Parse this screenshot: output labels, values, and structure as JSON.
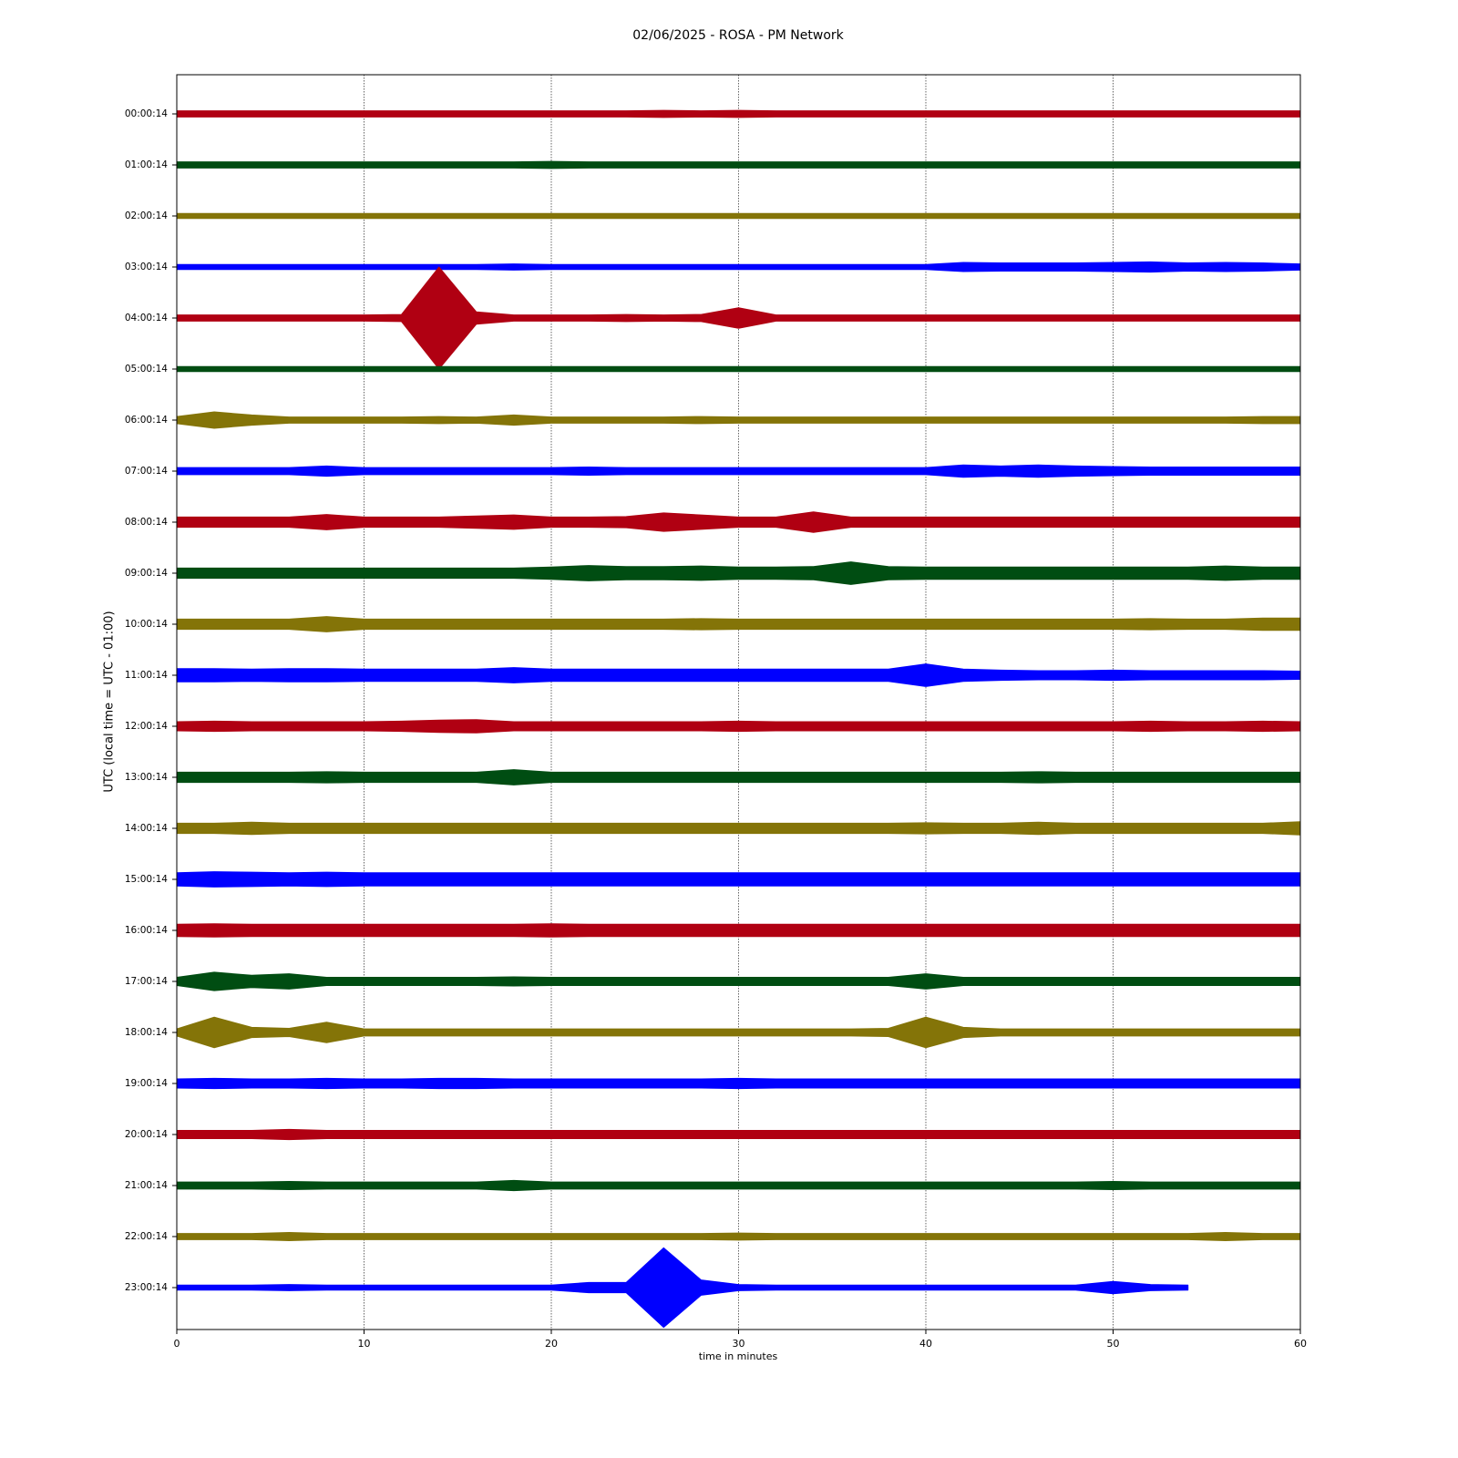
{
  "chart_data": {
    "type": "helicorder",
    "title": "02/06/2025 - ROSA - PM Network",
    "x_label": "time in minutes",
    "y_label": "UTC (local time = UTC - 01:00)",
    "xlim": [
      0,
      60
    ],
    "xticks": [
      0,
      10,
      20,
      30,
      40,
      50,
      60
    ],
    "grid": true,
    "categories": [
      "00:00:14",
      "01:00:14",
      "02:00:14",
      "03:00:14",
      "04:00:14",
      "05:00:14",
      "06:00:14",
      "07:00:14",
      "08:00:14",
      "09:00:14",
      "10:00:14",
      "11:00:14",
      "12:00:14",
      "13:00:14",
      "14:00:14",
      "15:00:14",
      "16:00:14",
      "17:00:14",
      "18:00:14",
      "19:00:14",
      "20:00:14",
      "21:00:14",
      "22:00:14",
      "23:00:14"
    ],
    "x": [
      0,
      2,
      4,
      6,
      8,
      10,
      12,
      14,
      16,
      18,
      20,
      22,
      24,
      26,
      28,
      30,
      32,
      34,
      36,
      38,
      40,
      42,
      44,
      46,
      48,
      50,
      52,
      54,
      56,
      58,
      60
    ],
    "series": [
      {
        "color": "#b00012",
        "values": [
          0.06,
          0.06,
          0.06,
          0.06,
          0.06,
          0.06,
          0.06,
          0.06,
          0.06,
          0.06,
          0.06,
          0.06,
          0.06,
          0.07,
          0.06,
          0.07,
          0.06,
          0.06,
          0.06,
          0.06,
          0.06,
          0.06,
          0.06,
          0.06,
          0.06,
          0.06,
          0.06,
          0.06,
          0.06,
          0.06,
          0.06
        ]
      },
      {
        "color": "#004d12",
        "values": [
          0.06,
          0.06,
          0.06,
          0.06,
          0.06,
          0.06,
          0.06,
          0.06,
          0.06,
          0.06,
          0.07,
          0.06,
          0.06,
          0.06,
          0.06,
          0.06,
          0.06,
          0.06,
          0.06,
          0.06,
          0.06,
          0.06,
          0.06,
          0.06,
          0.06,
          0.06,
          0.06,
          0.06,
          0.06,
          0.06,
          0.06
        ]
      },
      {
        "color": "#847408",
        "values": [
          0.05,
          0.05,
          0.05,
          0.05,
          0.05,
          0.05,
          0.05,
          0.05,
          0.05,
          0.05,
          0.05,
          0.05,
          0.05,
          0.05,
          0.05,
          0.05,
          0.05,
          0.05,
          0.05,
          0.05,
          0.05,
          0.05,
          0.05,
          0.05,
          0.05,
          0.05,
          0.05,
          0.05,
          0.05,
          0.05,
          0.05
        ]
      },
      {
        "color": "#0000ff",
        "values": [
          0.05,
          0.05,
          0.05,
          0.05,
          0.05,
          0.05,
          0.05,
          0.05,
          0.05,
          0.06,
          0.05,
          0.05,
          0.05,
          0.05,
          0.05,
          0.05,
          0.05,
          0.05,
          0.05,
          0.05,
          0.05,
          0.09,
          0.08,
          0.08,
          0.08,
          0.09,
          0.1,
          0.08,
          0.09,
          0.08,
          0.06
        ]
      },
      {
        "color": "#b00012",
        "values": [
          0.06,
          0.06,
          0.06,
          0.06,
          0.06,
          0.06,
          0.07,
          1.0,
          0.12,
          0.06,
          0.06,
          0.06,
          0.07,
          0.06,
          0.07,
          0.2,
          0.06,
          0.06,
          0.06,
          0.06,
          0.06,
          0.06,
          0.06,
          0.06,
          0.06,
          0.06,
          0.06,
          0.06,
          0.06,
          0.06,
          0.06
        ]
      },
      {
        "color": "#004d12",
        "values": [
          0.05,
          0.05,
          0.05,
          0.05,
          0.05,
          0.05,
          0.05,
          0.05,
          0.05,
          0.05,
          0.05,
          0.05,
          0.05,
          0.05,
          0.05,
          0.05,
          0.05,
          0.05,
          0.05,
          0.05,
          0.05,
          0.05,
          0.05,
          0.05,
          0.05,
          0.05,
          0.05,
          0.05,
          0.05,
          0.05,
          0.05
        ]
      },
      {
        "color": "#847408",
        "values": [
          0.07,
          0.16,
          0.1,
          0.06,
          0.06,
          0.06,
          0.06,
          0.07,
          0.06,
          0.1,
          0.06,
          0.06,
          0.06,
          0.06,
          0.07,
          0.06,
          0.06,
          0.06,
          0.06,
          0.06,
          0.06,
          0.06,
          0.06,
          0.06,
          0.06,
          0.06,
          0.06,
          0.06,
          0.06,
          0.07,
          0.07
        ]
      },
      {
        "color": "#0000ff",
        "values": [
          0.07,
          0.07,
          0.07,
          0.07,
          0.1,
          0.07,
          0.07,
          0.07,
          0.07,
          0.07,
          0.07,
          0.08,
          0.07,
          0.07,
          0.07,
          0.07,
          0.07,
          0.07,
          0.07,
          0.07,
          0.07,
          0.12,
          0.1,
          0.12,
          0.1,
          0.09,
          0.08,
          0.08,
          0.08,
          0.08,
          0.08
        ]
      },
      {
        "color": "#b00012",
        "values": [
          0.1,
          0.1,
          0.1,
          0.1,
          0.15,
          0.1,
          0.1,
          0.1,
          0.12,
          0.14,
          0.1,
          0.1,
          0.11,
          0.18,
          0.14,
          0.1,
          0.1,
          0.2,
          0.1,
          0.1,
          0.1,
          0.1,
          0.1,
          0.1,
          0.1,
          0.1,
          0.1,
          0.1,
          0.1,
          0.1,
          0.1
        ]
      },
      {
        "color": "#004d12",
        "values": [
          0.1,
          0.1,
          0.1,
          0.1,
          0.1,
          0.1,
          0.1,
          0.1,
          0.1,
          0.1,
          0.12,
          0.15,
          0.13,
          0.13,
          0.14,
          0.12,
          0.12,
          0.13,
          0.22,
          0.13,
          0.12,
          0.12,
          0.12,
          0.12,
          0.12,
          0.12,
          0.12,
          0.12,
          0.14,
          0.12,
          0.12
        ]
      },
      {
        "color": "#847408",
        "values": [
          0.1,
          0.1,
          0.1,
          0.1,
          0.15,
          0.1,
          0.1,
          0.1,
          0.1,
          0.1,
          0.1,
          0.1,
          0.1,
          0.1,
          0.11,
          0.1,
          0.1,
          0.1,
          0.1,
          0.1,
          0.1,
          0.1,
          0.1,
          0.1,
          0.1,
          0.1,
          0.11,
          0.1,
          0.1,
          0.12,
          0.12
        ]
      },
      {
        "color": "#0000ff",
        "values": [
          0.13,
          0.13,
          0.12,
          0.13,
          0.13,
          0.12,
          0.12,
          0.12,
          0.12,
          0.15,
          0.12,
          0.12,
          0.12,
          0.12,
          0.12,
          0.12,
          0.12,
          0.12,
          0.12,
          0.12,
          0.22,
          0.12,
          0.1,
          0.09,
          0.09,
          0.1,
          0.09,
          0.09,
          0.09,
          0.09,
          0.08
        ]
      },
      {
        "color": "#b00012",
        "values": [
          0.09,
          0.1,
          0.09,
          0.09,
          0.09,
          0.09,
          0.1,
          0.12,
          0.13,
          0.09,
          0.09,
          0.09,
          0.09,
          0.09,
          0.09,
          0.1,
          0.09,
          0.09,
          0.09,
          0.09,
          0.09,
          0.09,
          0.09,
          0.09,
          0.09,
          0.09,
          0.1,
          0.09,
          0.09,
          0.1,
          0.09
        ]
      },
      {
        "color": "#004d12",
        "values": [
          0.1,
          0.1,
          0.1,
          0.1,
          0.11,
          0.1,
          0.1,
          0.1,
          0.1,
          0.15,
          0.1,
          0.1,
          0.1,
          0.1,
          0.1,
          0.1,
          0.1,
          0.1,
          0.1,
          0.1,
          0.1,
          0.1,
          0.1,
          0.11,
          0.1,
          0.1,
          0.1,
          0.1,
          0.1,
          0.1,
          0.1
        ]
      },
      {
        "color": "#847408",
        "values": [
          0.1,
          0.1,
          0.12,
          0.1,
          0.1,
          0.1,
          0.1,
          0.1,
          0.1,
          0.1,
          0.1,
          0.1,
          0.1,
          0.1,
          0.1,
          0.1,
          0.1,
          0.1,
          0.1,
          0.1,
          0.11,
          0.1,
          0.1,
          0.12,
          0.1,
          0.1,
          0.1,
          0.1,
          0.1,
          0.1,
          0.13
        ]
      },
      {
        "color": "#0000ff",
        "values": [
          0.13,
          0.15,
          0.14,
          0.13,
          0.14,
          0.13,
          0.13,
          0.13,
          0.13,
          0.13,
          0.13,
          0.13,
          0.13,
          0.13,
          0.13,
          0.13,
          0.13,
          0.13,
          0.13,
          0.13,
          0.13,
          0.13,
          0.13,
          0.13,
          0.13,
          0.13,
          0.13,
          0.13,
          0.13,
          0.13,
          0.13
        ]
      },
      {
        "color": "#b00012",
        "values": [
          0.12,
          0.13,
          0.12,
          0.12,
          0.12,
          0.12,
          0.12,
          0.12,
          0.12,
          0.12,
          0.13,
          0.12,
          0.12,
          0.12,
          0.12,
          0.12,
          0.12,
          0.12,
          0.12,
          0.12,
          0.12,
          0.12,
          0.12,
          0.12,
          0.12,
          0.12,
          0.12,
          0.12,
          0.12,
          0.12,
          0.12
        ]
      },
      {
        "color": "#004d12",
        "values": [
          0.08,
          0.18,
          0.12,
          0.15,
          0.08,
          0.08,
          0.08,
          0.08,
          0.08,
          0.09,
          0.08,
          0.08,
          0.08,
          0.08,
          0.08,
          0.08,
          0.08,
          0.08,
          0.08,
          0.08,
          0.15,
          0.08,
          0.08,
          0.08,
          0.08,
          0.08,
          0.08,
          0.08,
          0.08,
          0.08,
          0.08
        ]
      },
      {
        "color": "#847408",
        "values": [
          0.07,
          0.3,
          0.1,
          0.08,
          0.2,
          0.07,
          0.07,
          0.07,
          0.07,
          0.07,
          0.07,
          0.07,
          0.07,
          0.07,
          0.07,
          0.07,
          0.07,
          0.07,
          0.07,
          0.08,
          0.3,
          0.1,
          0.07,
          0.07,
          0.07,
          0.07,
          0.07,
          0.07,
          0.07,
          0.07,
          0.07
        ]
      },
      {
        "color": "#0000ff",
        "values": [
          0.09,
          0.1,
          0.09,
          0.09,
          0.1,
          0.09,
          0.09,
          0.1,
          0.1,
          0.09,
          0.09,
          0.09,
          0.09,
          0.09,
          0.09,
          0.1,
          0.09,
          0.09,
          0.09,
          0.09,
          0.09,
          0.09,
          0.09,
          0.09,
          0.09,
          0.09,
          0.09,
          0.09,
          0.09,
          0.09,
          0.09
        ]
      },
      {
        "color": "#b00012",
        "values": [
          0.08,
          0.08,
          0.08,
          0.1,
          0.08,
          0.08,
          0.08,
          0.08,
          0.08,
          0.08,
          0.08,
          0.08,
          0.08,
          0.08,
          0.08,
          0.08,
          0.08,
          0.08,
          0.08,
          0.08,
          0.08,
          0.08,
          0.08,
          0.08,
          0.08,
          0.08,
          0.08,
          0.08,
          0.08,
          0.08,
          0.08
        ]
      },
      {
        "color": "#004d12",
        "values": [
          0.07,
          0.07,
          0.07,
          0.08,
          0.07,
          0.07,
          0.07,
          0.07,
          0.07,
          0.1,
          0.07,
          0.07,
          0.07,
          0.07,
          0.07,
          0.07,
          0.07,
          0.07,
          0.07,
          0.07,
          0.07,
          0.07,
          0.07,
          0.07,
          0.07,
          0.08,
          0.07,
          0.07,
          0.07,
          0.07,
          0.07
        ]
      },
      {
        "color": "#847408",
        "values": [
          0.06,
          0.06,
          0.06,
          0.08,
          0.06,
          0.06,
          0.06,
          0.06,
          0.06,
          0.06,
          0.06,
          0.06,
          0.06,
          0.06,
          0.06,
          0.07,
          0.06,
          0.06,
          0.06,
          0.06,
          0.06,
          0.06,
          0.06,
          0.06,
          0.06,
          0.06,
          0.06,
          0.06,
          0.08,
          0.06,
          0.06
        ]
      },
      {
        "color": "#0000ff",
        "values": [
          0.05,
          0.05,
          0.05,
          0.06,
          0.05,
          0.05,
          0.05,
          0.05,
          0.05,
          0.05,
          0.05,
          0.1,
          0.1,
          0.78,
          0.15,
          0.06,
          0.05,
          0.05,
          0.05,
          0.05,
          0.05,
          0.05,
          0.05,
          0.05,
          0.05,
          0.12,
          0.06,
          0.05,
          null,
          null,
          null
        ]
      }
    ]
  }
}
